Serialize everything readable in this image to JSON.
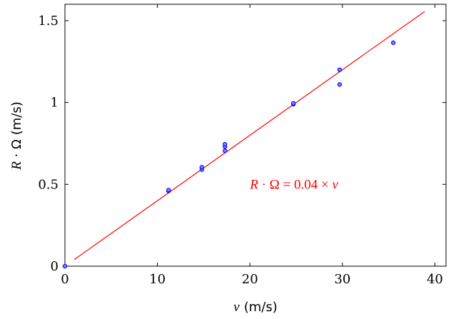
{
  "chart_data": {
    "type": "scatter",
    "x_axis": {
      "variable": "v",
      "unit": "(m/s)",
      "range": [
        0,
        41.2
      ],
      "ticks": [
        0,
        10,
        20,
        30,
        40
      ]
    },
    "y_axis": {
      "variable_R": "R",
      "variable_Omega": "Ω",
      "unit": "(m/s)",
      "range": [
        0,
        1.6
      ],
      "ticks": [
        0,
        0.5,
        1,
        1.5
      ]
    },
    "tick_labels_x": [
      "0",
      "10",
      "20",
      "30",
      "40"
    ],
    "tick_labels_y": [
      "0",
      "0.5",
      "1",
      "1.5"
    ],
    "series": [
      {
        "marker": "circle",
        "color": "#0000ff",
        "fill": "#8080ff",
        "points": [
          {
            "x": 0,
            "y": 0
          },
          {
            "x": 11.2,
            "y": 0.46
          },
          {
            "x": 11.2,
            "y": 0.465
          },
          {
            "x": 14.8,
            "y": 0.59
          },
          {
            "x": 14.8,
            "y": 0.605
          },
          {
            "x": 17.3,
            "y": 0.705
          },
          {
            "x": 17.3,
            "y": 0.73
          },
          {
            "x": 17.3,
            "y": 0.745
          },
          {
            "x": 24.7,
            "y": 0.99
          },
          {
            "x": 24.7,
            "y": 0.995
          },
          {
            "x": 29.7,
            "y": 1.11
          },
          {
            "x": 29.7,
            "y": 1.2
          },
          {
            "x": 35.5,
            "y": 1.365
          }
        ]
      }
    ],
    "fit_line": {
      "slope": 0.04,
      "x_range": [
        1,
        38.9
      ],
      "color": "#ff0000"
    },
    "annotation": {
      "R": "R",
      "middle": " · Ω = 0.04 × ",
      "v": "v",
      "color": "#ff0000",
      "anchor": {
        "x": 20,
        "y": 0.5
      }
    },
    "grid": false
  }
}
